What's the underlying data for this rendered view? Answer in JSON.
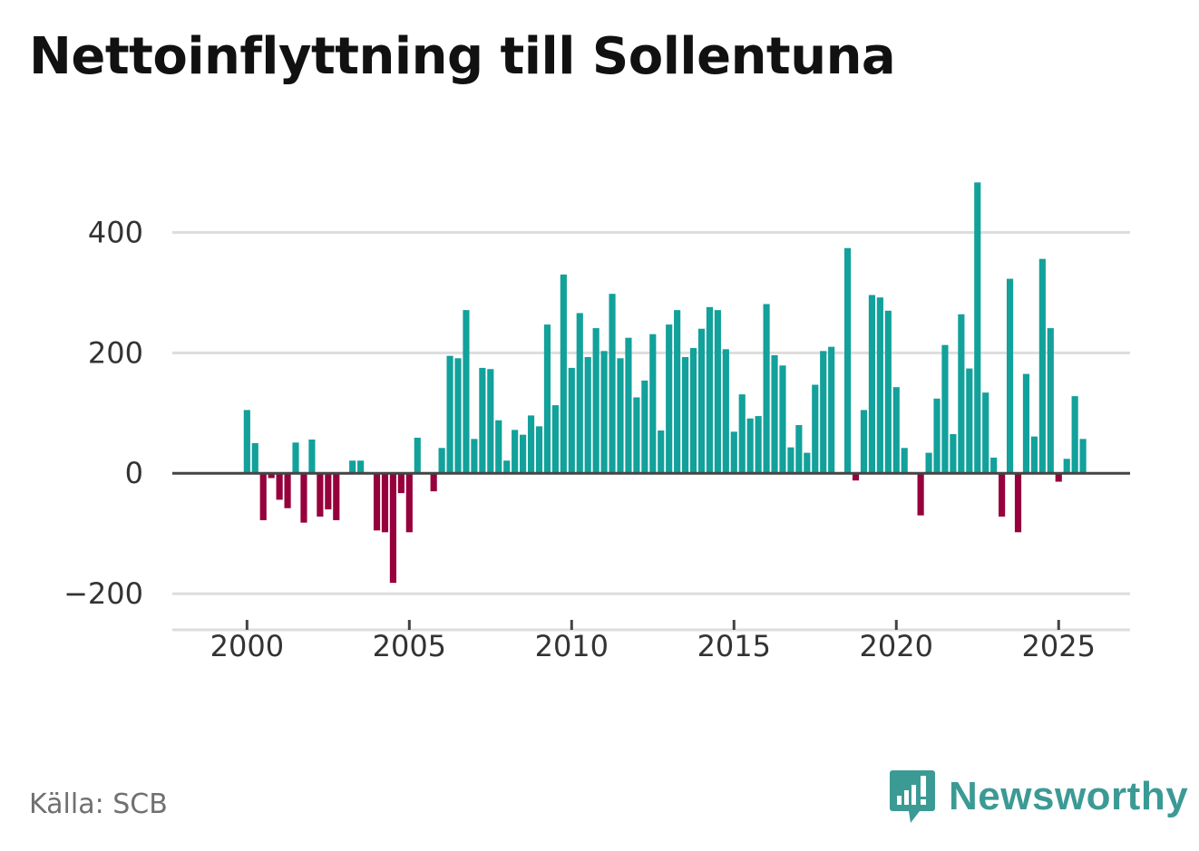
{
  "title": "Nettoinflyttning till Sollentuna",
  "source": "Källa: SCB",
  "brand": "Newsworthy",
  "colors": {
    "positive": "#12a19b",
    "negative": "#96003c",
    "grid": "#dddddd",
    "zero": "#444444",
    "brand": "#3c9a95"
  },
  "chart_data": {
    "type": "bar",
    "title": "Nettoinflyttning till Sollentuna",
    "xlabel": "",
    "ylabel": "",
    "ylim": [
      -230,
      500
    ],
    "xlim": [
      1997.7,
      2027.2
    ],
    "y_ticks": [
      {
        "value": 400,
        "label": "400"
      },
      {
        "value": 200,
        "label": "200"
      },
      {
        "value": 0,
        "label": "0"
      },
      {
        "value": -200,
        "label": "−200"
      }
    ],
    "x_ticks": [
      {
        "value": 2000,
        "label": "2000"
      },
      {
        "value": 2005,
        "label": "2005"
      },
      {
        "value": 2010,
        "label": "2010"
      },
      {
        "value": 2015,
        "label": "2015"
      },
      {
        "value": 2020,
        "label": "2020"
      },
      {
        "value": 2025,
        "label": "2025"
      }
    ],
    "grid": true,
    "start_year": 2000,
    "periods_per_year": 4,
    "values": [
      105,
      50,
      -78,
      -8,
      -44,
      -58,
      51,
      -82,
      56,
      -72,
      -60,
      -78,
      0,
      21,
      21,
      0,
      -95,
      -98,
      -182,
      -33,
      -98,
      59,
      0,
      -30,
      42,
      195,
      191,
      271,
      57,
      175,
      173,
      88,
      21,
      72,
      64,
      96,
      78,
      247,
      113,
      330,
      175,
      266,
      193,
      241,
      203,
      298,
      191,
      225,
      126,
      154,
      231,
      71,
      247,
      271,
      193,
      208,
      240,
      276,
      271,
      206,
      69,
      131,
      91,
      95,
      281,
      196,
      179,
      43,
      80,
      34,
      147,
      203,
      210,
      0,
      374,
      -12,
      105,
      296,
      292,
      270,
      143,
      42,
      0,
      -70,
      34,
      124,
      213,
      65,
      264,
      174,
      483,
      134,
      26,
      -72,
      323,
      -98,
      165,
      61,
      356,
      241,
      -14,
      24,
      128,
      57
    ]
  }
}
